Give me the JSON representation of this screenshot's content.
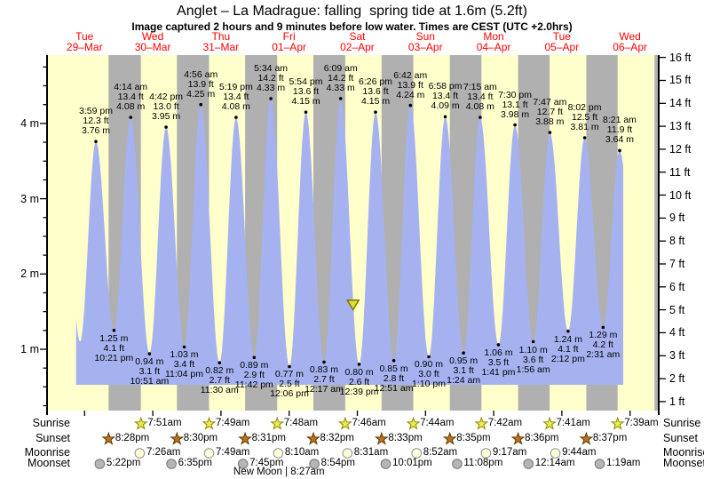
{
  "title": "Anglet – La Madrague: falling  spring tide at 1.6m (5.2ft)",
  "subtitle": "Image captured 2 hours and 9 minutes before low water. Times are CEST (UTC +2.0hrs)",
  "chart_data": {
    "type": "area",
    "title": "Anglet – La Madrague tide heights",
    "x_axis": "days (CEST)",
    "y_axis_left_label": "height (m)",
    "y_axis_right_label": "height (ft)",
    "y_left_ticks": [
      "4 m",
      "3 m",
      "2 m",
      "1 m"
    ],
    "y_right_ticks": [
      "16 ft",
      "15 ft",
      "14 ft",
      "13 ft",
      "12 ft",
      "11 ft",
      "10 ft",
      "9 ft",
      "8 ft",
      "7 ft",
      "6 ft",
      "5 ft",
      "4 ft",
      "3 ft",
      "2 ft",
      "1 ft"
    ],
    "days": [
      {
        "weekday": "Tue",
        "date": "29–Mar"
      },
      {
        "weekday": "Wed",
        "date": "30–Mar"
      },
      {
        "weekday": "Thu",
        "date": "31–Mar"
      },
      {
        "weekday": "Fri",
        "date": "01–Apr"
      },
      {
        "weekday": "Sat",
        "date": "02–Apr"
      },
      {
        "weekday": "Sun",
        "date": "03–Apr"
      },
      {
        "weekday": "Mon",
        "date": "04–Apr"
      },
      {
        "weekday": "Tue",
        "date": "05–Apr"
      },
      {
        "weekday": "Wed",
        "date": "06–Apr"
      }
    ],
    "tide_events": [
      {
        "d": 0,
        "type": "high",
        "time": "3:59 pm",
        "ft": "12.3 ft",
        "m": "3.76 m"
      },
      {
        "d": 0,
        "type": "low",
        "time": "10:21 pm",
        "ft": "4.1 ft",
        "m": "1.25 m"
      },
      {
        "d": 1,
        "type": "high",
        "time": "4:14 am",
        "ft": "13.4 ft",
        "m": "4.08 m"
      },
      {
        "d": 1,
        "type": "low",
        "time": "10:51 am",
        "ft": "3.1 ft",
        "m": "0.94 m"
      },
      {
        "d": 1,
        "type": "high",
        "time": "4:42 pm",
        "ft": "13.0 ft",
        "m": "3.95 m"
      },
      {
        "d": 1,
        "type": "low",
        "time": "11:04 pm",
        "ft": "3.4 ft",
        "m": "1.03 m"
      },
      {
        "d": 2,
        "type": "high",
        "time": "4:56 am",
        "ft": "13.9 ft",
        "m": "4.25 m"
      },
      {
        "d": 2,
        "type": "low",
        "time": "11:30 am",
        "ft": "2.7 ft",
        "m": "0.82 m"
      },
      {
        "d": 2,
        "type": "high",
        "time": "5:19 pm",
        "ft": "13.4 ft",
        "m": "4.08 m"
      },
      {
        "d": 2,
        "type": "low",
        "time": "11:42 pm",
        "ft": "2.9 ft",
        "m": "0.89 m"
      },
      {
        "d": 3,
        "type": "high",
        "time": "5:34 am",
        "ft": "14.2 ft",
        "m": "4.33 m"
      },
      {
        "d": 3,
        "type": "low",
        "time": "12:06 pm",
        "ft": "2.5 ft",
        "m": "0.77 m"
      },
      {
        "d": 3,
        "type": "high",
        "time": "5:54 pm",
        "ft": "13.6 ft",
        "m": "4.15 m"
      },
      {
        "d": 4,
        "type": "low",
        "time": "12:17 am",
        "ft": "2.7 ft",
        "m": "0.83 m"
      },
      {
        "d": 4,
        "type": "high",
        "time": "6:09 am",
        "ft": "14.2 ft",
        "m": "4.33 m"
      },
      {
        "d": 4,
        "type": "low",
        "time": "12:39 pm",
        "ft": "2.6 ft",
        "m": "0.80 m"
      },
      {
        "d": 4,
        "type": "high",
        "time": "6:26 pm",
        "ft": "13.6 ft",
        "m": "4.15 m"
      },
      {
        "d": 5,
        "type": "low",
        "time": "12:51 am",
        "ft": "2.8 ft",
        "m": "0.85 m"
      },
      {
        "d": 5,
        "type": "high",
        "time": "6:42 am",
        "ft": "13.9 ft",
        "m": "4.24 m"
      },
      {
        "d": 5,
        "type": "low",
        "time": "1:10 pm",
        "ft": "3.0 ft",
        "m": "0.90 m"
      },
      {
        "d": 5,
        "type": "high",
        "time": "6:58 pm",
        "ft": "13.4 ft",
        "m": "4.09 m"
      },
      {
        "d": 6,
        "type": "low",
        "time": "1:24 am",
        "ft": "3.1 ft",
        "m": "0.95 m"
      },
      {
        "d": 6,
        "type": "high",
        "time": "7:15 am",
        "ft": "13.4 ft",
        "m": "4.08 m"
      },
      {
        "d": 6,
        "type": "low",
        "time": "1:41 pm",
        "ft": "3.5 ft",
        "m": "1.06 m"
      },
      {
        "d": 6,
        "type": "high",
        "time": "7:30 pm",
        "ft": "13.1 ft",
        "m": "3.98 m"
      },
      {
        "d": 7,
        "type": "low",
        "time": "1:56 am",
        "ft": "3.6 ft",
        "m": "1.10 m"
      },
      {
        "d": 7,
        "type": "high",
        "time": "7:47 am",
        "ft": "12.7 ft",
        "m": "3.88 m"
      },
      {
        "d": 7,
        "type": "low",
        "time": "2:12 pm",
        "ft": "4.1 ft",
        "m": "1.24 m"
      },
      {
        "d": 7,
        "type": "high",
        "time": "8:02 pm",
        "ft": "12.5 ft",
        "m": "3.81 m"
      },
      {
        "d": 8,
        "type": "low",
        "time": "2:31 am",
        "ft": "4.2 ft",
        "m": "1.29 m"
      },
      {
        "d": 8,
        "type": "high",
        "time": "8:21 am",
        "ft": "11.9 ft",
        "m": "3.64 m"
      }
    ],
    "current_marker": {
      "height_m": 1.6,
      "t_hours": 106.5
    },
    "astro": {
      "rows": [
        {
          "label": "Sunrise",
          "type": "sunrise",
          "events": [
            {
              "d": 1,
              "time": "7:51am"
            },
            {
              "d": 2,
              "time": "7:49am"
            },
            {
              "d": 3,
              "time": "7:48am"
            },
            {
              "d": 4,
              "time": "7:46am"
            },
            {
              "d": 5,
              "time": "7:44am"
            },
            {
              "d": 6,
              "time": "7:42am"
            },
            {
              "d": 7,
              "time": "7:41am"
            },
            {
              "d": 8,
              "time": "7:39am"
            }
          ]
        },
        {
          "label": "Sunset",
          "type": "sunset",
          "events": [
            {
              "d": 0,
              "time": "8:28pm"
            },
            {
              "d": 1,
              "time": "8:30pm"
            },
            {
              "d": 2,
              "time": "8:31pm"
            },
            {
              "d": 3,
              "time": "8:32pm"
            },
            {
              "d": 4,
              "time": "8:33pm"
            },
            {
              "d": 5,
              "time": "8:35pm"
            },
            {
              "d": 6,
              "time": "8:36pm"
            },
            {
              "d": 7,
              "time": "8:37pm"
            }
          ]
        },
        {
          "label": "Moonrise",
          "type": "moonrise",
          "events": [
            {
              "d": 1,
              "time": "7:26am"
            },
            {
              "d": 2,
              "time": "7:49am"
            },
            {
              "d": 3,
              "time": "8:10am"
            },
            {
              "d": 4,
              "time": "8:31am"
            },
            {
              "d": 5,
              "time": "8:52am"
            },
            {
              "d": 6,
              "time": "9:17am"
            },
            {
              "d": 7,
              "time": "9:44am"
            }
          ]
        },
        {
          "label": "Moonset",
          "type": "moonset",
          "events": [
            {
              "d": 0,
              "time": "5:22pm"
            },
            {
              "d": 1,
              "time": "6:35pm"
            },
            {
              "d": 2,
              "time": "7:45pm"
            },
            {
              "d": 3,
              "time": "8:54pm"
            },
            {
              "d": 4,
              "time": "10:01pm"
            },
            {
              "d": 5,
              "time": "11:08pm"
            },
            {
              "d": 7,
              "time": "12:14am"
            },
            {
              "d": 8,
              "time": "1:19am"
            }
          ]
        }
      ],
      "new_moon": {
        "d": 3,
        "label": "New Moon",
        "time": "8:27am"
      }
    },
    "colors": {
      "day_band": "#ffffcc",
      "night_band": "#b0b0b0",
      "tide_fill": "#a6b2f0",
      "day_label_red": "#ff0000",
      "sunrise_star": "#eded4f",
      "sunset_star": "#bf7122",
      "moonrise_circle": "#ffffd9",
      "moonset_circle": "#b5b5b5",
      "marker_fill": "#dddd33"
    }
  }
}
